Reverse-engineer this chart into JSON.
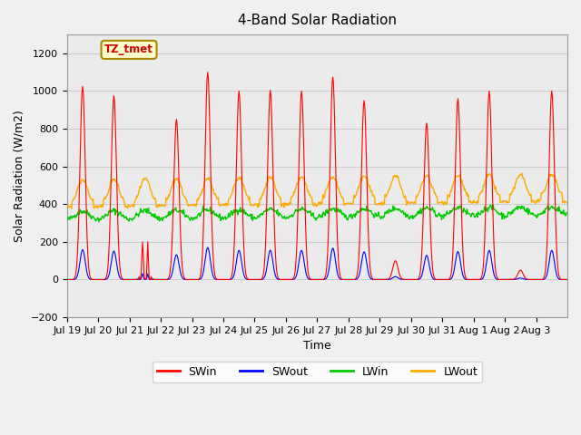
{
  "title": "4-Band Solar Radiation",
  "xlabel": "Time",
  "ylabel": "Solar Radiation (W/m2)",
  "ylim": [
    -200,
    1300
  ],
  "yticks": [
    -200,
    0,
    200,
    400,
    600,
    800,
    1000,
    1200
  ],
  "x_tick_labels": [
    "Jul 19",
    "Jul 20",
    "Jul 21",
    "Jul 22",
    "Jul 23",
    "Jul 24",
    "Jul 25",
    "Jul 26",
    "Jul 27",
    "Jul 28",
    "Jul 29",
    "Jul 30",
    "Jul 31",
    "Aug 1",
    "Aug 2",
    "Aug 3"
  ],
  "colors": {
    "SWin": "#ff0000",
    "SWout": "#0000ff",
    "LWin": "#00cc00",
    "LWout": "#ffaa00"
  },
  "annotation_text": "TZ_tmet",
  "annotation_color": "#cc0000",
  "annotation_bg": "#ffffcc",
  "annotation_border": "#aa8800",
  "grid_color": "#cccccc",
  "plot_bg": "#ebebeb",
  "n_days": 16,
  "dt_hours": 0.5,
  "SWin_peaks": [
    1025,
    975,
    200,
    850,
    1100,
    1000,
    1005,
    1000,
    1075,
    950,
    100,
    830,
    960,
    1000,
    50,
    1000
  ]
}
